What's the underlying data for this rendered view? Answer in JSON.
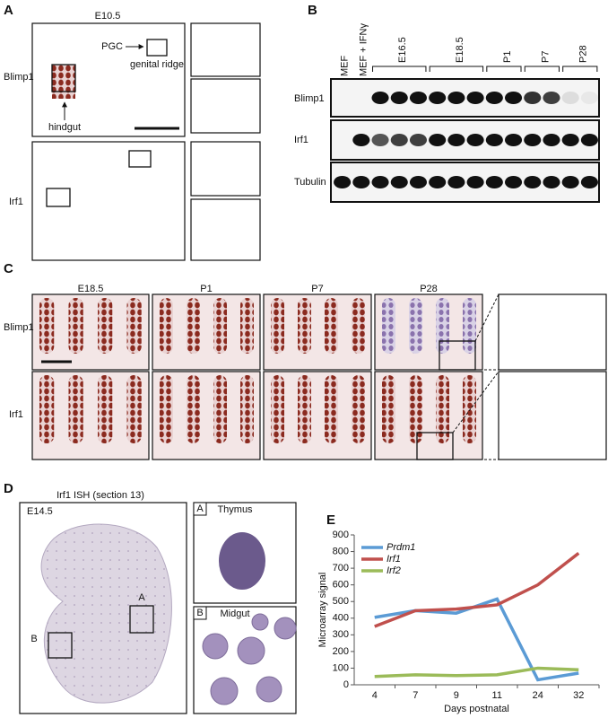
{
  "panels": {
    "A": {
      "label": "A",
      "stage": "E10.5",
      "rows": [
        "Blimp1",
        "Irf1"
      ],
      "annotations": [
        "PGC",
        "genital ridge",
        "hindgut"
      ]
    },
    "B": {
      "label": "B",
      "lanes": [
        "MEF",
        "MEF + IFNγ"
      ],
      "groups": [
        "E16.5",
        "E18.5",
        "P1",
        "P7",
        "P28"
      ],
      "rows": [
        "Blimp1",
        "Irf1",
        "Tubulin"
      ]
    },
    "C": {
      "label": "C",
      "columns": [
        "E18.5",
        "P1",
        "P7",
        "P28"
      ],
      "rows": [
        "Blimp1",
        "Irf1"
      ]
    },
    "D": {
      "label": "D",
      "title": "Irf1 ISH (section 13)",
      "stage": "E14.5",
      "insets": [
        {
          "tag": "A",
          "name": "Thymus"
        },
        {
          "tag": "B",
          "name": "Midgut"
        }
      ]
    },
    "E": {
      "label": "E"
    }
  },
  "chart_data": {
    "type": "line",
    "x_label": "Days postnatal",
    "y_label": "Microarray signal",
    "categories": [
      "4",
      "7",
      "9",
      "11",
      "24",
      "32"
    ],
    "series": [
      {
        "name": "Prdm1",
        "color": "#5b9bd5",
        "values": [
          405,
          445,
          430,
          515,
          30,
          70
        ]
      },
      {
        "name": "Irf1",
        "color": "#c0504d",
        "values": [
          350,
          445,
          455,
          480,
          600,
          790
        ]
      },
      {
        "name": "Irf2",
        "color": "#9bbb59",
        "values": [
          50,
          60,
          55,
          60,
          100,
          90
        ]
      }
    ],
    "ylim": [
      0,
      900
    ],
    "yticks": [
      0,
      100,
      200,
      300,
      400,
      500,
      600,
      700,
      800,
      900
    ],
    "legend": "upper left"
  }
}
